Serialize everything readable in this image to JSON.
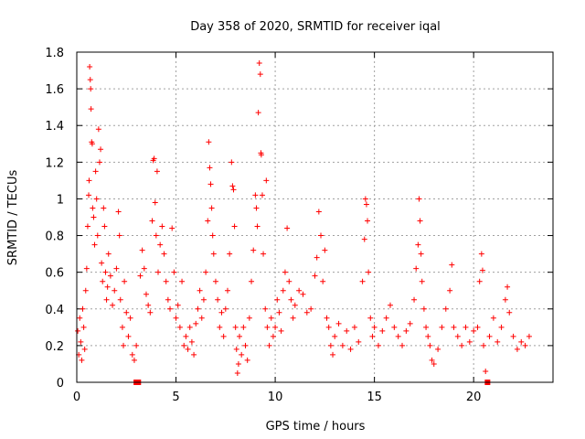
{
  "chart_data": {
    "type": "scatter",
    "title": "Day 358 of 2020, SRMTID for receiver iqal",
    "xlabel": "GPS time / hours",
    "ylabel": "SRMTID / TECUs",
    "xlim": [
      0,
      24
    ],
    "ylim": [
      0,
      1.8
    ],
    "grid": true,
    "x_ticks": [
      0,
      5,
      10,
      15,
      20
    ],
    "x_tick_labels": [
      "0",
      "5",
      "10",
      "15",
      "20"
    ],
    "y_ticks": [
      0,
      0.2,
      0.4,
      0.6,
      0.8,
      1,
      1.2,
      1.4,
      1.6,
      1.8
    ],
    "y_tick_labels": [
      "0",
      "0.2",
      "0.4",
      "0.6",
      "0.8",
      "1",
      "1.2",
      "1.4",
      "1.6",
      "1.8"
    ],
    "marker": "plus",
    "color": "#ff0000",
    "gap_markers": [
      {
        "x": 3.0,
        "y": 0.0
      },
      {
        "x": 3.1,
        "y": 0.0
      },
      {
        "x": 20.7,
        "y": 0.0
      }
    ],
    "points": [
      [
        0.05,
        0.28
      ],
      [
        0.1,
        0.15
      ],
      [
        0.15,
        0.35
      ],
      [
        0.2,
        0.22
      ],
      [
        0.25,
        0.12
      ],
      [
        0.3,
        0.4
      ],
      [
        0.35,
        0.3
      ],
      [
        0.4,
        0.18
      ],
      [
        0.45,
        0.5
      ],
      [
        0.5,
        0.62
      ],
      [
        0.55,
        0.85
      ],
      [
        0.6,
        1.02
      ],
      [
        0.62,
        1.1
      ],
      [
        0.65,
        1.72
      ],
      [
        0.68,
        1.65
      ],
      [
        0.7,
        1.6
      ],
      [
        0.72,
        1.49
      ],
      [
        0.75,
        1.31
      ],
      [
        0.78,
        1.3
      ],
      [
        0.8,
        0.95
      ],
      [
        0.85,
        0.9
      ],
      [
        0.9,
        0.75
      ],
      [
        0.95,
        1.15
      ],
      [
        1.0,
        1.0
      ],
      [
        1.05,
        0.8
      ],
      [
        1.1,
        1.38
      ],
      [
        1.15,
        1.2
      ],
      [
        1.2,
        1.27
      ],
      [
        1.25,
        0.65
      ],
      [
        1.3,
        0.55
      ],
      [
        1.35,
        0.95
      ],
      [
        1.4,
        0.85
      ],
      [
        1.45,
        0.6
      ],
      [
        1.5,
        0.45
      ],
      [
        1.55,
        0.52
      ],
      [
        1.6,
        0.7
      ],
      [
        1.7,
        0.58
      ],
      [
        1.8,
        0.42
      ],
      [
        1.9,
        0.5
      ],
      [
        2.0,
        0.62
      ],
      [
        2.1,
        0.93
      ],
      [
        2.15,
        0.8
      ],
      [
        2.2,
        0.45
      ],
      [
        2.3,
        0.3
      ],
      [
        2.35,
        0.2
      ],
      [
        2.4,
        0.55
      ],
      [
        2.5,
        0.38
      ],
      [
        2.6,
        0.25
      ],
      [
        2.7,
        0.35
      ],
      [
        2.8,
        0.15
      ],
      [
        2.9,
        0.12
      ],
      [
        3.0,
        0.2
      ],
      [
        3.2,
        0.58
      ],
      [
        3.3,
        0.72
      ],
      [
        3.4,
        0.62
      ],
      [
        3.5,
        0.48
      ],
      [
        3.6,
        0.42
      ],
      [
        3.7,
        0.38
      ],
      [
        3.8,
        0.88
      ],
      [
        3.85,
        1.21
      ],
      [
        3.9,
        1.22
      ],
      [
        3.95,
        0.98
      ],
      [
        4.0,
        0.8
      ],
      [
        4.05,
        1.15
      ],
      [
        4.1,
        0.6
      ],
      [
        4.2,
        0.75
      ],
      [
        4.3,
        0.85
      ],
      [
        4.4,
        0.7
      ],
      [
        4.5,
        0.55
      ],
      [
        4.6,
        0.45
      ],
      [
        4.7,
        0.4
      ],
      [
        4.8,
        0.84
      ],
      [
        4.9,
        0.6
      ],
      [
        5.0,
        0.35
      ],
      [
        5.1,
        0.42
      ],
      [
        5.2,
        0.3
      ],
      [
        5.3,
        0.55
      ],
      [
        5.4,
        0.2
      ],
      [
        5.5,
        0.25
      ],
      [
        5.6,
        0.18
      ],
      [
        5.7,
        0.3
      ],
      [
        5.8,
        0.22
      ],
      [
        5.9,
        0.15
      ],
      [
        6.0,
        0.32
      ],
      [
        6.1,
        0.4
      ],
      [
        6.2,
        0.5
      ],
      [
        6.3,
        0.35
      ],
      [
        6.4,
        0.45
      ],
      [
        6.5,
        0.6
      ],
      [
        6.6,
        0.88
      ],
      [
        6.65,
        1.31
      ],
      [
        6.7,
        1.17
      ],
      [
        6.75,
        1.08
      ],
      [
        6.8,
        0.95
      ],
      [
        6.85,
        0.8
      ],
      [
        6.9,
        0.7
      ],
      [
        7.0,
        0.55
      ],
      [
        7.1,
        0.45
      ],
      [
        7.2,
        0.3
      ],
      [
        7.3,
        0.38
      ],
      [
        7.4,
        0.25
      ],
      [
        7.5,
        0.4
      ],
      [
        7.6,
        0.5
      ],
      [
        7.7,
        0.7
      ],
      [
        7.8,
        1.2
      ],
      [
        7.85,
        1.07
      ],
      [
        7.9,
        1.05
      ],
      [
        7.95,
        0.85
      ],
      [
        8.0,
        0.3
      ],
      [
        8.05,
        0.18
      ],
      [
        8.1,
        0.05
      ],
      [
        8.15,
        0.1
      ],
      [
        8.2,
        0.25
      ],
      [
        8.3,
        0.15
      ],
      [
        8.4,
        0.3
      ],
      [
        8.5,
        0.2
      ],
      [
        8.6,
        0.12
      ],
      [
        8.7,
        0.35
      ],
      [
        8.8,
        0.55
      ],
      [
        8.9,
        0.72
      ],
      [
        9.0,
        1.02
      ],
      [
        9.05,
        0.95
      ],
      [
        9.1,
        0.85
      ],
      [
        9.15,
        1.47
      ],
      [
        9.2,
        1.74
      ],
      [
        9.25,
        1.68
      ],
      [
        9.28,
        1.25
      ],
      [
        9.3,
        1.24
      ],
      [
        9.35,
        1.02
      ],
      [
        9.4,
        0.7
      ],
      [
        9.5,
        0.4
      ],
      [
        9.55,
        1.1
      ],
      [
        9.6,
        0.3
      ],
      [
        9.7,
        0.2
      ],
      [
        9.8,
        0.35
      ],
      [
        9.9,
        0.25
      ],
      [
        10.0,
        0.3
      ],
      [
        10.1,
        0.45
      ],
      [
        10.2,
        0.38
      ],
      [
        10.3,
        0.28
      ],
      [
        10.4,
        0.5
      ],
      [
        10.5,
        0.6
      ],
      [
        10.6,
        0.84
      ],
      [
        10.7,
        0.55
      ],
      [
        10.8,
        0.45
      ],
      [
        10.9,
        0.35
      ],
      [
        11.0,
        0.42
      ],
      [
        11.2,
        0.5
      ],
      [
        11.4,
        0.48
      ],
      [
        11.6,
        0.38
      ],
      [
        11.8,
        0.4
      ],
      [
        12.0,
        0.58
      ],
      [
        12.1,
        0.68
      ],
      [
        12.2,
        0.93
      ],
      [
        12.3,
        0.8
      ],
      [
        12.4,
        0.55
      ],
      [
        12.5,
        0.72
      ],
      [
        12.6,
        0.35
      ],
      [
        12.7,
        0.3
      ],
      [
        12.8,
        0.2
      ],
      [
        12.9,
        0.15
      ],
      [
        13.0,
        0.25
      ],
      [
        13.2,
        0.32
      ],
      [
        13.4,
        0.2
      ],
      [
        13.6,
        0.28
      ],
      [
        13.8,
        0.18
      ],
      [
        14.0,
        0.3
      ],
      [
        14.2,
        0.22
      ],
      [
        14.4,
        0.55
      ],
      [
        14.5,
        0.78
      ],
      [
        14.55,
        1.0
      ],
      [
        14.6,
        0.97
      ],
      [
        14.65,
        0.88
      ],
      [
        14.7,
        0.6
      ],
      [
        14.8,
        0.35
      ],
      [
        14.9,
        0.25
      ],
      [
        15.0,
        0.3
      ],
      [
        15.2,
        0.2
      ],
      [
        15.4,
        0.28
      ],
      [
        15.6,
        0.35
      ],
      [
        15.8,
        0.42
      ],
      [
        16.0,
        0.3
      ],
      [
        16.2,
        0.25
      ],
      [
        16.4,
        0.2
      ],
      [
        16.6,
        0.28
      ],
      [
        16.8,
        0.32
      ],
      [
        17.0,
        0.45
      ],
      [
        17.1,
        0.62
      ],
      [
        17.2,
        0.75
      ],
      [
        17.25,
        1.0
      ],
      [
        17.3,
        0.88
      ],
      [
        17.35,
        0.7
      ],
      [
        17.4,
        0.55
      ],
      [
        17.5,
        0.4
      ],
      [
        17.6,
        0.3
      ],
      [
        17.7,
        0.25
      ],
      [
        17.8,
        0.2
      ],
      [
        17.9,
        0.12
      ],
      [
        18.0,
        0.1
      ],
      [
        18.2,
        0.18
      ],
      [
        18.4,
        0.3
      ],
      [
        18.6,
        0.4
      ],
      [
        18.8,
        0.5
      ],
      [
        18.9,
        0.64
      ],
      [
        19.0,
        0.3
      ],
      [
        19.2,
        0.25
      ],
      [
        19.4,
        0.2
      ],
      [
        19.6,
        0.3
      ],
      [
        19.8,
        0.22
      ],
      [
        20.0,
        0.28
      ],
      [
        20.2,
        0.3
      ],
      [
        20.3,
        0.55
      ],
      [
        20.4,
        0.7
      ],
      [
        20.45,
        0.61
      ],
      [
        20.5,
        0.2
      ],
      [
        20.6,
        0.06
      ],
      [
        20.8,
        0.25
      ],
      [
        21.0,
        0.35
      ],
      [
        21.2,
        0.22
      ],
      [
        21.4,
        0.3
      ],
      [
        21.6,
        0.45
      ],
      [
        21.7,
        0.52
      ],
      [
        21.8,
        0.38
      ],
      [
        22.0,
        0.25
      ],
      [
        22.2,
        0.18
      ],
      [
        22.4,
        0.22
      ],
      [
        22.6,
        0.2
      ],
      [
        22.8,
        0.25
      ]
    ]
  }
}
